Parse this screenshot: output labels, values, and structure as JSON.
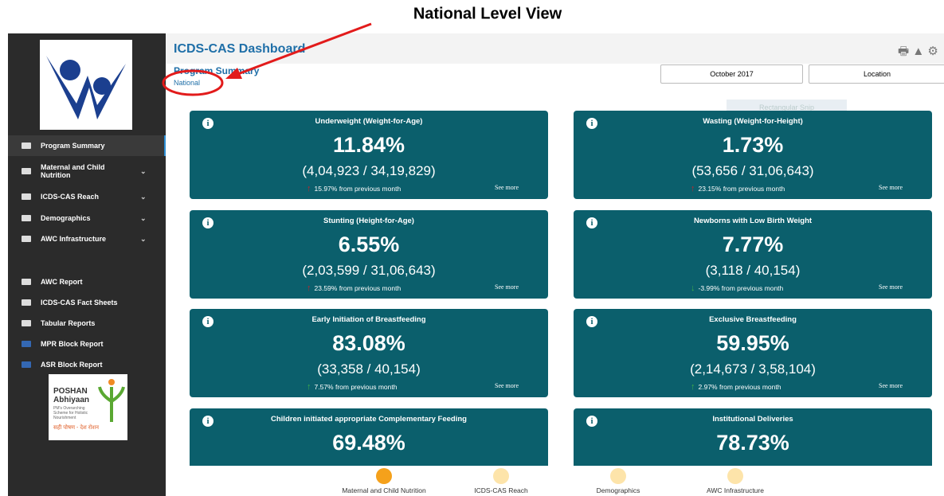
{
  "annotation": "National Level View",
  "header": {
    "title": "ICDS-CAS Dashboard",
    "subtitle": "Program Summary",
    "level": "National",
    "snip": "Rectangular Snip"
  },
  "filters": [
    "October 2017",
    "Location"
  ],
  "sidebar": {
    "menu": [
      {
        "label": "Program Summary",
        "expandable": false,
        "active": true
      },
      {
        "label": "Maternal and Child Nutrition",
        "expandable": true,
        "active": false
      },
      {
        "label": "ICDS-CAS Reach",
        "expandable": true,
        "active": false
      },
      {
        "label": "Demographics",
        "expandable": true,
        "active": false
      },
      {
        "label": "AWC Infrastructure",
        "expandable": true,
        "active": false
      },
      {
        "label": "AWC Report",
        "expandable": false,
        "active": false
      },
      {
        "label": "ICDS-CAS Fact Sheets",
        "expandable": false,
        "active": false
      },
      {
        "label": "Tabular Reports",
        "expandable": false,
        "active": false
      },
      {
        "label": "MPR Block Report",
        "expandable": false,
        "active": false
      },
      {
        "label": "ASR Block Report",
        "expandable": false,
        "active": false
      }
    ],
    "logo": {
      "name": "POSHAN",
      "name2": "Abhiyaan",
      "tagline": "PM's Overarching Scheme for Holistic Nourishment",
      "slogan": "सही पोषण - देश रोशन"
    }
  },
  "cards": [
    {
      "title": "Underweight (Weight-for-Age)",
      "value": "11.84%",
      "ratio": "(4,04,923 / 34,19,829)",
      "change": "15.97% from previous month",
      "trend": "up",
      "color": "#c0262c",
      "link": "See more"
    },
    {
      "title": "Wasting (Weight-for-Height)",
      "value": "1.73%",
      "ratio": "(53,656 / 31,06,643)",
      "change": "23.15% from previous month",
      "trend": "up",
      "color": "#c0262c",
      "link": "See more"
    },
    {
      "title": "Stunting (Height-for-Age)",
      "value": "6.55%",
      "ratio": "(2,03,599 / 31,06,643)",
      "change": "23.59% from previous month",
      "trend": "up",
      "color": "#c0262c",
      "link": "See more"
    },
    {
      "title": "Newborns with Low Birth Weight",
      "value": "7.77%",
      "ratio": "(3,118 / 40,154)",
      "change": "-3.99% from previous month",
      "trend": "down",
      "color": "#3fae49",
      "link": "See more"
    },
    {
      "title": "Early Initiation of Breastfeeding",
      "value": "83.08%",
      "ratio": "(33,358 / 40,154)",
      "change": "7.57% from previous month",
      "trend": "up",
      "color": "#3fae49",
      "link": "See more"
    },
    {
      "title": "Exclusive Breastfeeding",
      "value": "59.95%",
      "ratio": "(2,14,673 / 3,58,104)",
      "change": "2.97% from previous month",
      "trend": "up",
      "color": "#3fae49",
      "link": "See more"
    },
    {
      "title": "Children initiated appropriate Complementary Feeding",
      "value": "69.48%"
    },
    {
      "title": "Institutional Deliveries",
      "value": "78.73%"
    }
  ],
  "tabs": {
    "items": [
      "Maternal and Child Nutrition",
      "ICDS-CAS Reach",
      "Demographics",
      "AWC Infrastructure"
    ],
    "active": 0
  }
}
